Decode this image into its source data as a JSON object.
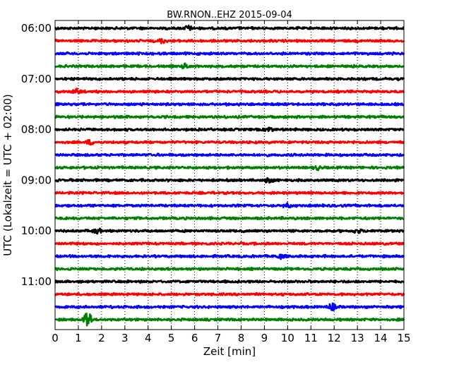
{
  "chart_data": {
    "type": "line",
    "title": "BW.RNON..EHZ 2015-09-04",
    "xlabel": "Zeit  [min]",
    "ylabel": "UTC (Lokalzeit = UTC + 02:00)",
    "xlim": [
      0,
      15
    ],
    "x_ticks": [
      "0",
      "1",
      "2",
      "3",
      "4",
      "5",
      "6",
      "7",
      "8",
      "9",
      "10",
      "11",
      "12",
      "13",
      "14",
      "15"
    ],
    "y_ticks": [
      "06:00",
      "07:00",
      "08:00",
      "09:00",
      "10:00",
      "11:00"
    ],
    "grid": "vertical dotted",
    "trace_colors": [
      "#000000",
      "#ff0000",
      "#0000ff",
      "#008000"
    ],
    "traces": [
      {
        "start": "06:00",
        "events": [
          {
            "x": 5.7,
            "amp": 1.5
          }
        ]
      },
      {
        "start": "06:15",
        "events": [
          {
            "x": 4.6,
            "amp": 1.3
          }
        ]
      },
      {
        "start": "06:30",
        "events": []
      },
      {
        "start": "06:45",
        "events": [
          {
            "x": 5.6,
            "amp": 1.4
          }
        ]
      },
      {
        "start": "07:00",
        "events": []
      },
      {
        "start": "07:15",
        "events": [
          {
            "x": 0.95,
            "amp": 1.5
          }
        ]
      },
      {
        "start": "07:30",
        "events": []
      },
      {
        "start": "07:45",
        "events": []
      },
      {
        "start": "08:00",
        "events": [
          {
            "x": 9.2,
            "amp": 1.3
          }
        ]
      },
      {
        "start": "08:15",
        "events": [
          {
            "x": 1.5,
            "amp": 1.3
          }
        ]
      },
      {
        "start": "08:30",
        "events": []
      },
      {
        "start": "08:45",
        "events": [
          {
            "x": 11.3,
            "amp": 1.2
          }
        ]
      },
      {
        "start": "09:00",
        "events": [
          {
            "x": 9.2,
            "amp": 1.4
          }
        ]
      },
      {
        "start": "09:15",
        "events": []
      },
      {
        "start": "09:30",
        "events": [
          {
            "x": 10.0,
            "amp": 1.3
          }
        ]
      },
      {
        "start": "09:45",
        "events": []
      },
      {
        "start": "10:00",
        "events": [
          {
            "x": 1.8,
            "amp": 1.6
          },
          {
            "x": 13.0,
            "amp": 1.3
          }
        ]
      },
      {
        "start": "10:15",
        "events": []
      },
      {
        "start": "10:30",
        "events": [
          {
            "x": 9.7,
            "amp": 1.3
          }
        ]
      },
      {
        "start": "10:45",
        "events": []
      },
      {
        "start": "11:00",
        "events": []
      },
      {
        "start": "11:15",
        "events": []
      },
      {
        "start": "11:30",
        "events": [
          {
            "x": 11.9,
            "amp": 2.2
          }
        ]
      },
      {
        "start": "11:45",
        "events": [
          {
            "x": 1.4,
            "amp": 6.5
          }
        ]
      }
    ]
  }
}
